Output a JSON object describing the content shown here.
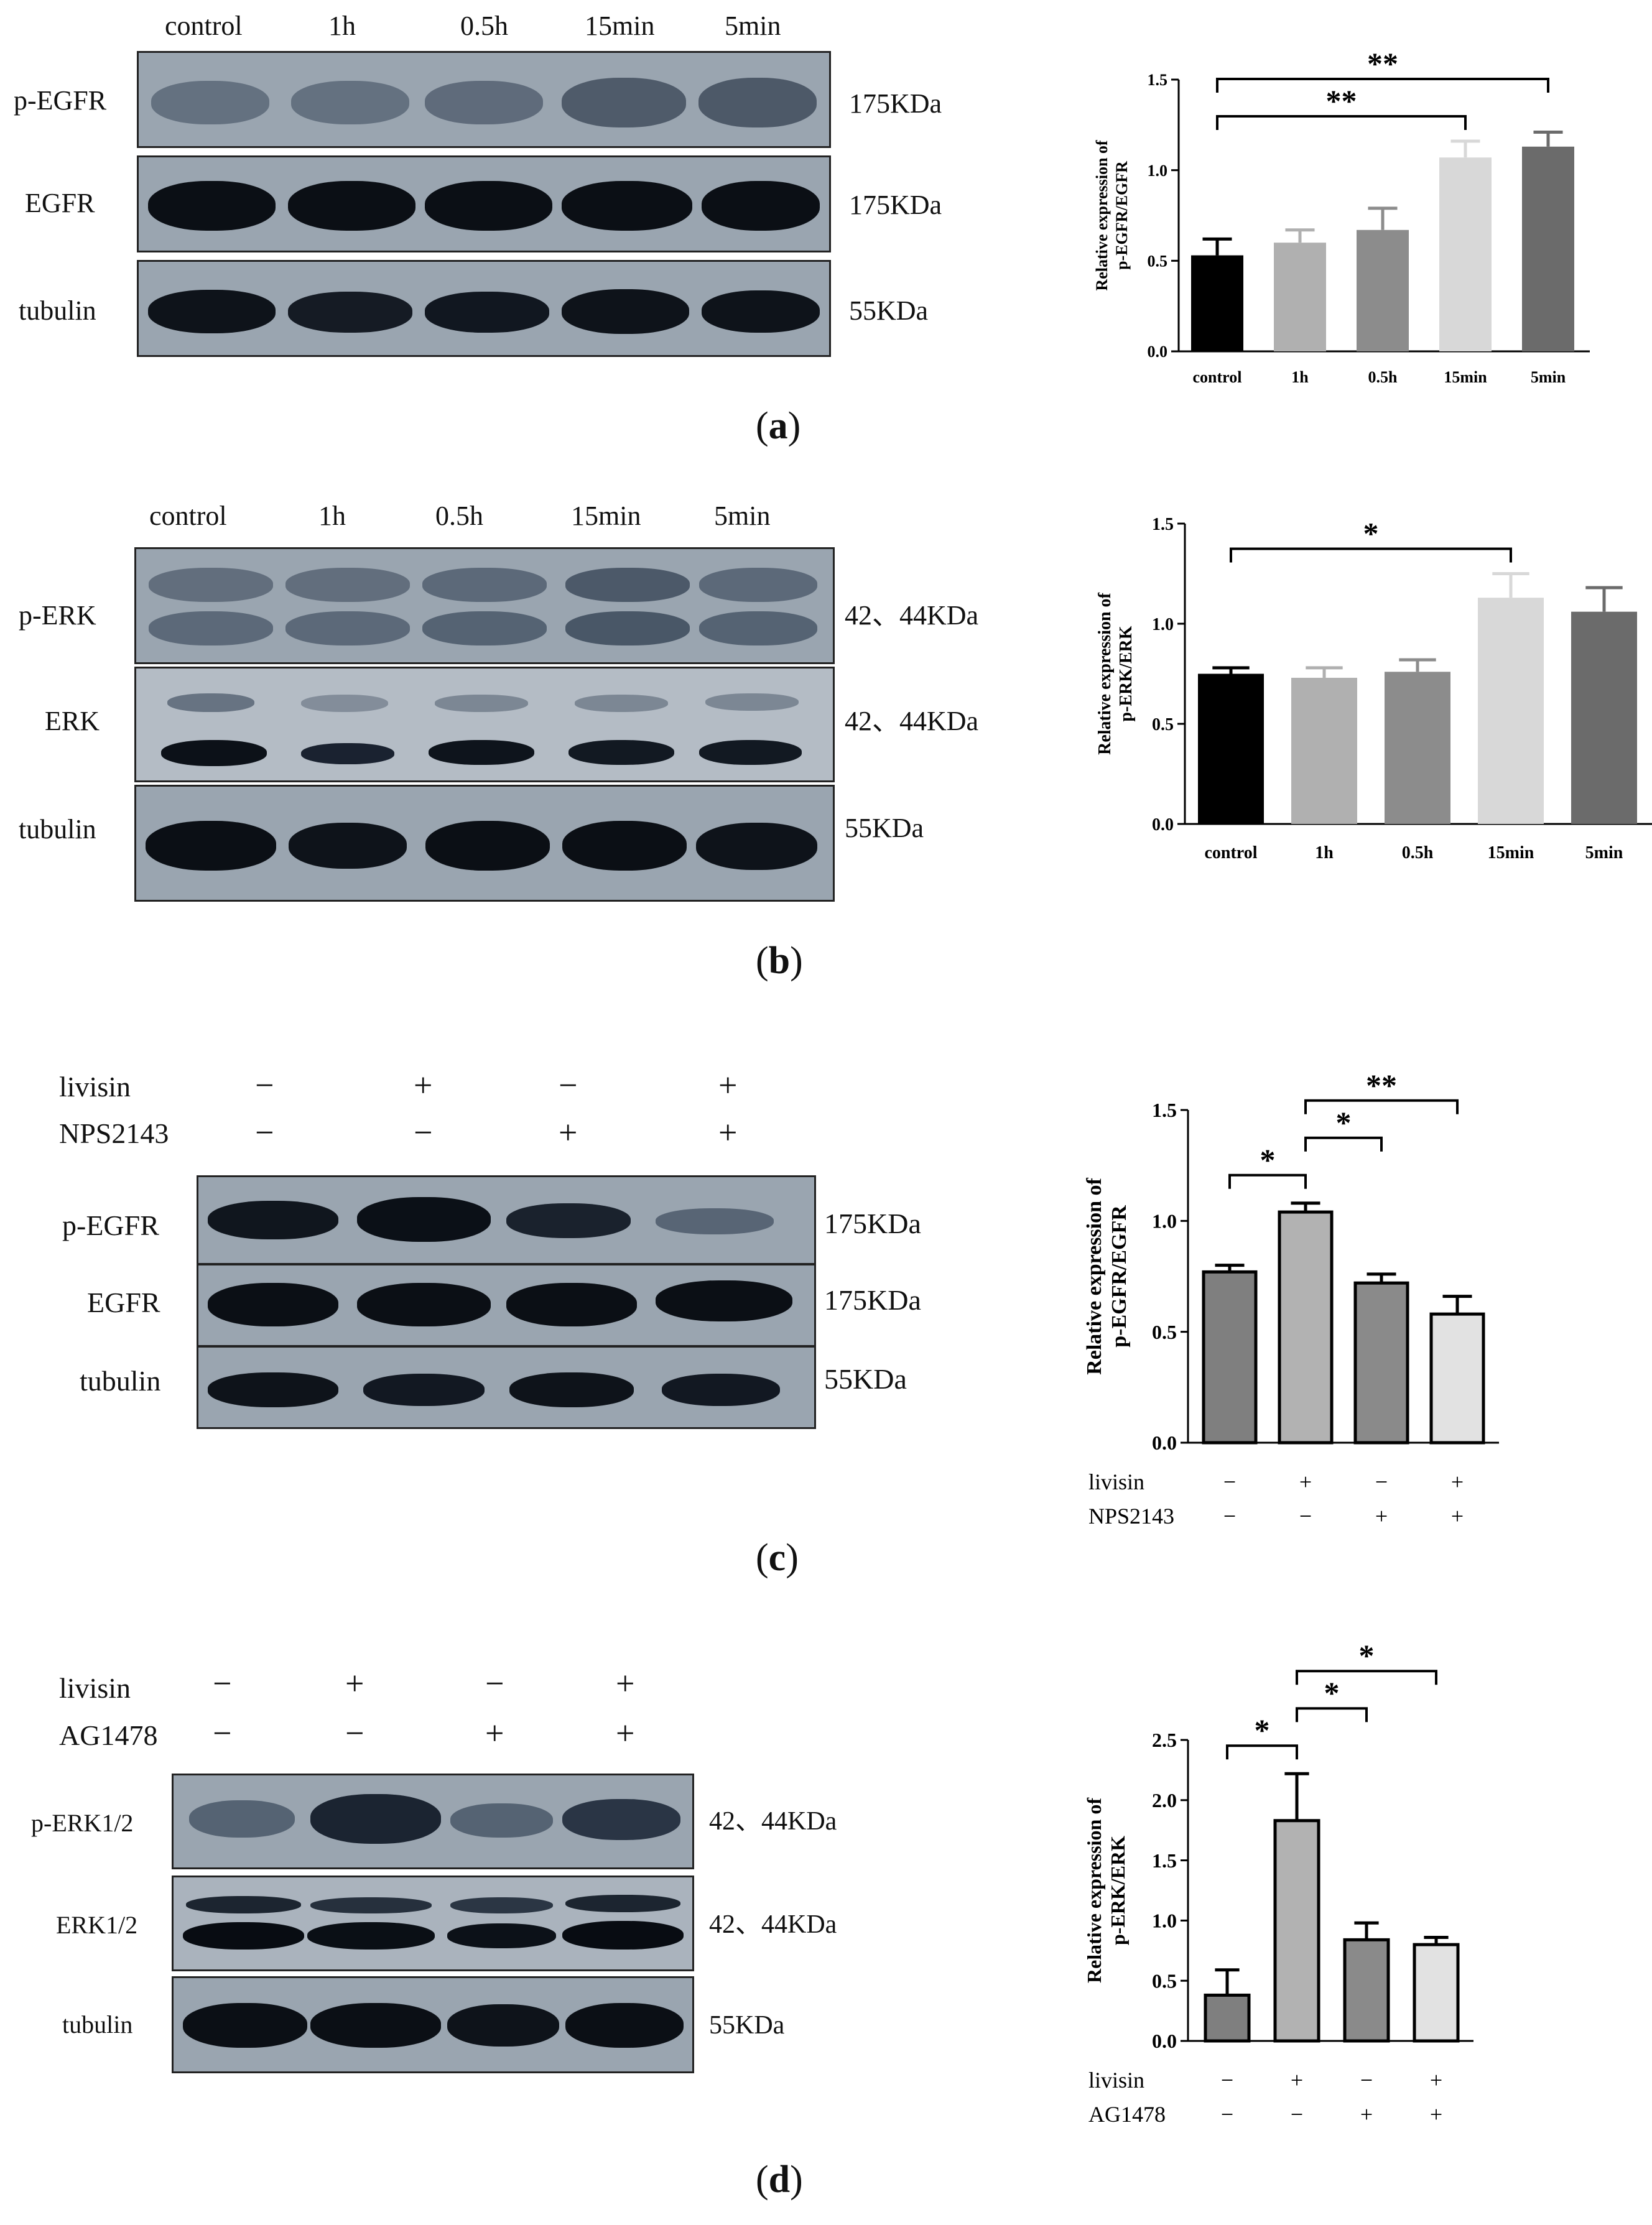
{
  "panels": {
    "a": {
      "letter": "a",
      "lanes": [
        "control",
        "1h",
        "0.5h",
        "15min",
        "5min"
      ],
      "rows": [
        {
          "label": "p-EGFR",
          "size": "175KDa"
        },
        {
          "label": "EGFR",
          "size": "175KDa"
        },
        {
          "label": "tubulin",
          "size": "55KDa"
        }
      ]
    },
    "b": {
      "letter": "b",
      "lanes": [
        "control",
        "1h",
        "0.5h",
        "15min",
        "5min"
      ],
      "rows": [
        {
          "label": "p-ERK",
          "size": "42、44KDa"
        },
        {
          "label": "ERK",
          "size": "42、44KDa"
        },
        {
          "label": "tubulin",
          "size": "55KDa"
        }
      ]
    },
    "c": {
      "letter": "c",
      "treatments": [
        {
          "name": "livisin",
          "signs": [
            "−",
            "+",
            "−",
            "+"
          ]
        },
        {
          "name": "NPS2143",
          "signs": [
            "−",
            "−",
            "+",
            "+"
          ]
        }
      ],
      "rows": [
        {
          "label": "p-EGFR",
          "size": "175KDa"
        },
        {
          "label": "EGFR",
          "size": "175KDa"
        },
        {
          "label": "tubulin",
          "size": "55KDa"
        }
      ]
    },
    "d": {
      "letter": "d",
      "treatments": [
        {
          "name": "livisin",
          "signs": [
            "−",
            "+",
            "−",
            "+"
          ]
        },
        {
          "name": "AG1478",
          "signs": [
            "−",
            "−",
            "+",
            "+"
          ]
        }
      ],
      "rows": [
        {
          "label": "p-ERK1/2",
          "size": "42、44KDa"
        },
        {
          "label": "ERK1/2",
          "size": "42、44KDa"
        },
        {
          "label": "tubulin",
          "size": "55KDa"
        }
      ]
    }
  },
  "chart_data": [
    {
      "type": "bar",
      "panel": "a",
      "ylabel": [
        "Relative expression of",
        "p-EGFR/EGFR"
      ],
      "categories": [
        "control",
        "1h",
        "0.5h",
        "15min",
        "5min"
      ],
      "values": [
        0.53,
        0.6,
        0.67,
        1.07,
        1.13
      ],
      "errors": [
        0.09,
        0.07,
        0.12,
        0.09,
        0.08
      ],
      "colors": [
        "#000000",
        "#b0b0b0",
        "#8c8c8c",
        "#d8d8d8",
        "#6b6b6b"
      ],
      "ylim": [
        0,
        1.5
      ],
      "yticks": [
        "0.0",
        "0.5",
        "1.0",
        "1.5"
      ],
      "significance": [
        {
          "from": 0,
          "to": 3,
          "label": "**"
        },
        {
          "from": 0,
          "to": 4,
          "label": "**"
        }
      ]
    },
    {
      "type": "bar",
      "panel": "b",
      "ylabel": [
        "Relative expression of",
        "p-ERK/ERK"
      ],
      "categories": [
        "control",
        "1h",
        "0.5h",
        "15min",
        "5min"
      ],
      "values": [
        0.75,
        0.73,
        0.76,
        1.13,
        1.06
      ],
      "errors": [
        0.03,
        0.05,
        0.06,
        0.12,
        0.12
      ],
      "colors": [
        "#000000",
        "#b0b0b0",
        "#8c8c8c",
        "#d8d8d8",
        "#6b6b6b"
      ],
      "ylim": [
        0,
        1.5
      ],
      "yticks": [
        "0.0",
        "0.5",
        "1.0",
        "1.5"
      ],
      "significance": [
        {
          "from": 0,
          "to": 3,
          "label": "*"
        }
      ]
    },
    {
      "type": "bar",
      "panel": "c",
      "ylabel": [
        "Relative expression of",
        "p-EGFR/EGFR"
      ],
      "values": [
        0.77,
        1.04,
        0.72,
        0.58
      ],
      "errors": [
        0.03,
        0.04,
        0.04,
        0.08
      ],
      "colors": [
        "#7f7f7f",
        "#b2b2b2",
        "#8a8a8a",
        "#e2e2e2"
      ],
      "ylim": [
        0,
        1.5
      ],
      "yticks": [
        "0.0",
        "0.5",
        "1.0",
        "1.5"
      ],
      "treatments": [
        {
          "name": "livisin",
          "signs": [
            "−",
            "+",
            "−",
            "+"
          ]
        },
        {
          "name": "NPS2143",
          "signs": [
            "−",
            "−",
            "+",
            "+"
          ]
        }
      ],
      "significance": [
        {
          "from": 0,
          "to": 1,
          "label": "*"
        },
        {
          "from": 1,
          "to": 2,
          "label": "*"
        },
        {
          "from": 1,
          "to": 3,
          "label": "**"
        }
      ]
    },
    {
      "type": "bar",
      "panel": "d",
      "ylabel": [
        "Relative expression of",
        "p-ERK/ERK"
      ],
      "values": [
        0.38,
        1.83,
        0.84,
        0.8
      ],
      "errors": [
        0.21,
        0.39,
        0.14,
        0.06
      ],
      "colors": [
        "#7f7f7f",
        "#b2b2b2",
        "#8a8a8a",
        "#e2e2e2"
      ],
      "ylim": [
        0,
        2.5
      ],
      "yticks": [
        "0.0",
        "0.5",
        "1.0",
        "1.5",
        "2.0",
        "2.5"
      ],
      "treatments": [
        {
          "name": "livisin",
          "signs": [
            "−",
            "+",
            "−",
            "+"
          ]
        },
        {
          "name": "AG1478",
          "signs": [
            "−",
            "−",
            "+",
            "+"
          ]
        }
      ],
      "significance": [
        {
          "from": 0,
          "to": 1,
          "label": "*"
        },
        {
          "from": 1,
          "to": 2,
          "label": "*"
        },
        {
          "from": 1,
          "to": 3,
          "label": "*"
        }
      ]
    }
  ]
}
